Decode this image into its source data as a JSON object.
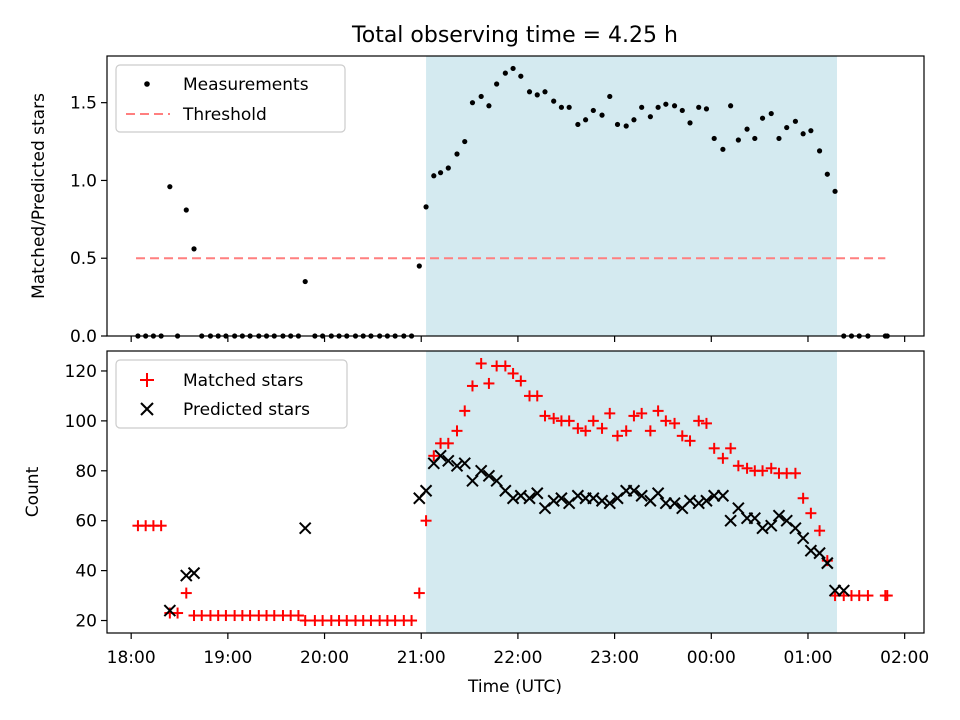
{
  "chart_data": [
    {
      "type": "scatter",
      "title": "Total observing time = 4.25 h",
      "ylabel": "Matched/Predicted stars",
      "xlabel": "",
      "ylim": [
        0,
        1.8
      ],
      "yticks": [
        0.0,
        0.5,
        1.0,
        1.5
      ],
      "ytick_labels": [
        "0.0",
        "0.5",
        "1.0",
        "1.5"
      ],
      "legend": {
        "position": "upper-left",
        "entries": [
          "Measurements",
          "Threshold"
        ]
      },
      "shaded_region": {
        "x": [
          21.05,
          25.3
        ],
        "color": "#d4eaf0"
      },
      "threshold": {
        "y": 0.5,
        "x": [
          18.05,
          25.8
        ],
        "color": "#ff7f7f"
      },
      "series": [
        {
          "name": "Measurements",
          "marker": "dot",
          "color": "#000000",
          "x": [
            18.07,
            18.15,
            18.23,
            18.31,
            18.4,
            18.48,
            18.57,
            18.65,
            18.73,
            18.82,
            18.9,
            18.98,
            19.07,
            19.15,
            19.23,
            19.32,
            19.4,
            19.48,
            19.57,
            19.65,
            19.73,
            19.8,
            19.9,
            19.98,
            20.07,
            20.15,
            20.23,
            20.32,
            20.4,
            20.48,
            20.57,
            20.65,
            20.73,
            20.82,
            20.9,
            20.98,
            21.05,
            21.13,
            21.2,
            21.28,
            21.37,
            21.45,
            21.53,
            21.62,
            21.7,
            21.78,
            21.87,
            21.95,
            22.03,
            22.12,
            22.2,
            22.28,
            22.37,
            22.45,
            22.53,
            22.62,
            22.7,
            22.78,
            22.87,
            22.95,
            23.03,
            23.12,
            23.2,
            23.28,
            23.37,
            23.45,
            23.53,
            23.62,
            23.7,
            23.78,
            23.87,
            23.95,
            24.03,
            24.12,
            24.2,
            24.28,
            24.37,
            24.45,
            24.53,
            24.62,
            24.7,
            24.78,
            24.87,
            24.95,
            25.03,
            25.12,
            25.2,
            25.28,
            25.37,
            25.45,
            25.53,
            25.62,
            25.8,
            25.82
          ],
          "y": [
            0,
            0,
            0,
            0,
            0.96,
            0,
            0.81,
            0.56,
            0,
            0,
            0,
            0,
            0,
            0,
            0,
            0,
            0,
            0,
            0,
            0,
            0,
            0.35,
            0,
            0,
            0,
            0,
            0,
            0,
            0,
            0,
            0,
            0,
            0,
            0,
            0,
            0.45,
            0.83,
            1.03,
            1.05,
            1.08,
            1.17,
            1.25,
            1.5,
            1.54,
            1.48,
            1.62,
            1.69,
            1.72,
            1.67,
            1.57,
            1.55,
            1.57,
            1.51,
            1.47,
            1.47,
            1.36,
            1.39,
            1.45,
            1.42,
            1.54,
            1.36,
            1.35,
            1.39,
            1.47,
            1.41,
            1.47,
            1.49,
            1.48,
            1.45,
            1.37,
            1.47,
            1.46,
            1.27,
            1.2,
            1.48,
            1.26,
            1.33,
            1.27,
            1.4,
            1.43,
            1.27,
            1.34,
            1.38,
            1.3,
            1.32,
            1.19,
            1.04,
            0.93,
            0,
            0,
            0,
            0,
            0,
            0
          ]
        }
      ]
    },
    {
      "type": "scatter",
      "title": "",
      "ylabel": "Count",
      "xlabel": "Time (UTC)",
      "ylim": [
        15,
        128
      ],
      "yticks": [
        20,
        40,
        60,
        80,
        100,
        120
      ],
      "ytick_labels": [
        "20",
        "40",
        "60",
        "80",
        "100",
        "120"
      ],
      "xlim": [
        17.75,
        26.2
      ],
      "xticks": [
        18,
        19,
        20,
        21,
        22,
        23,
        24,
        25,
        26
      ],
      "xtick_labels": [
        "18:00",
        "19:00",
        "20:00",
        "21:00",
        "22:00",
        "23:00",
        "00:00",
        "01:00",
        "02:00"
      ],
      "legend": {
        "position": "upper-left",
        "entries": [
          "Matched stars",
          "Predicted stars"
        ]
      },
      "shaded_region": {
        "x": [
          21.05,
          25.3
        ],
        "color": "#d4eaf0"
      },
      "series": [
        {
          "name": "Matched stars",
          "marker": "plus",
          "color": "#ff0000",
          "x": [
            18.07,
            18.15,
            18.23,
            18.31,
            18.4,
            18.48,
            18.57,
            18.65,
            18.73,
            18.82,
            18.9,
            18.98,
            19.07,
            19.15,
            19.23,
            19.32,
            19.4,
            19.48,
            19.57,
            19.65,
            19.73,
            19.8,
            19.9,
            19.98,
            20.07,
            20.15,
            20.23,
            20.32,
            20.4,
            20.48,
            20.57,
            20.65,
            20.73,
            20.82,
            20.9,
            20.98,
            21.05,
            21.13,
            21.2,
            21.28,
            21.37,
            21.45,
            21.53,
            21.62,
            21.7,
            21.78,
            21.87,
            21.95,
            22.03,
            22.12,
            22.2,
            22.28,
            22.37,
            22.45,
            22.53,
            22.62,
            22.7,
            22.78,
            22.87,
            22.95,
            23.03,
            23.12,
            23.2,
            23.28,
            23.37,
            23.45,
            23.53,
            23.62,
            23.7,
            23.78,
            23.87,
            23.95,
            24.03,
            24.12,
            24.2,
            24.28,
            24.37,
            24.45,
            24.53,
            24.62,
            24.7,
            24.78,
            24.87,
            24.95,
            25.03,
            25.12,
            25.2,
            25.28,
            25.37,
            25.45,
            25.53,
            25.62,
            25.8,
            25.82
          ],
          "y": [
            58,
            58,
            58,
            58,
            23,
            23,
            31,
            22,
            22,
            22,
            22,
            22,
            22,
            22,
            22,
            22,
            22,
            22,
            22,
            22,
            22,
            20,
            20,
            20,
            20,
            20,
            20,
            20,
            20,
            20,
            20,
            20,
            20,
            20,
            20,
            31,
            60,
            86,
            91,
            91,
            96,
            104,
            114,
            123,
            115,
            122,
            122,
            119,
            116,
            110,
            110,
            102,
            101,
            100,
            100,
            97,
            96,
            100,
            97,
            103,
            94,
            96,
            102,
            103,
            96,
            104,
            100,
            99,
            94,
            92,
            100,
            99,
            89,
            85,
            89,
            82,
            81,
            80,
            80,
            81,
            79,
            79,
            79,
            69,
            63,
            56,
            44,
            30,
            30,
            30,
            30,
            30,
            30,
            30
          ]
        },
        {
          "name": "Predicted stars",
          "marker": "x",
          "color": "#000000",
          "x": [
            18.4,
            18.57,
            18.65,
            19.8,
            20.98,
            21.05,
            21.13,
            21.2,
            21.28,
            21.37,
            21.45,
            21.53,
            21.62,
            21.7,
            21.78,
            21.87,
            21.95,
            22.03,
            22.12,
            22.2,
            22.28,
            22.37,
            22.45,
            22.53,
            22.62,
            22.7,
            22.78,
            22.87,
            22.95,
            23.03,
            23.12,
            23.2,
            23.28,
            23.37,
            23.45,
            23.53,
            23.62,
            23.7,
            23.78,
            23.87,
            23.95,
            24.03,
            24.12,
            24.2,
            24.28,
            24.37,
            24.45,
            24.53,
            24.62,
            24.7,
            24.78,
            24.87,
            24.95,
            25.03,
            25.12,
            25.2,
            25.28,
            25.37
          ],
          "y": [
            24,
            38,
            39,
            57,
            69,
            72,
            83,
            86,
            84,
            82,
            83,
            76,
            80,
            78,
            76,
            72,
            69,
            70,
            69,
            71,
            65,
            68,
            69,
            67,
            70,
            69,
            69,
            68,
            67,
            69,
            72,
            72,
            70,
            68,
            71,
            67,
            67,
            65,
            68,
            67,
            68,
            70,
            70,
            60,
            65,
            61,
            61,
            57,
            58,
            62,
            60,
            57,
            53,
            48,
            47,
            43,
            32,
            32
          ]
        }
      ]
    }
  ]
}
